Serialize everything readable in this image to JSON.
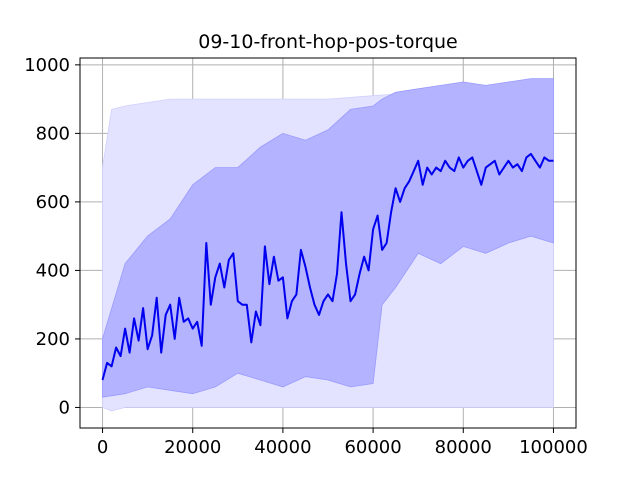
{
  "chart_data": {
    "type": "line",
    "title": "09-10-front-hop-pos-torque",
    "xlabel": "",
    "ylabel": "",
    "xlim": [
      -5000,
      105000
    ],
    "ylim": [
      -60,
      1020
    ],
    "xticks": [
      0,
      20000,
      40000,
      60000,
      80000,
      100000
    ],
    "xtick_labels": [
      "0",
      "20000",
      "40000",
      "60000",
      "80000",
      "100000"
    ],
    "yticks": [
      0,
      200,
      400,
      600,
      800,
      1000
    ],
    "ytick_labels": [
      "0",
      "200",
      "400",
      "600",
      "800",
      "1000"
    ],
    "grid": true,
    "colors": {
      "mean_line": "#0000ee",
      "inner_band": "#b3b3ff",
      "outer_band": "#e3e3ff",
      "grid": "#b0b0b0"
    },
    "series": [
      {
        "role": "mean",
        "x": [
          0,
          1000,
          2000,
          3000,
          4000,
          5000,
          6000,
          7000,
          8000,
          9000,
          10000,
          11000,
          12000,
          13000,
          14000,
          15000,
          16000,
          17000,
          18000,
          19000,
          20000,
          21000,
          22000,
          23000,
          24000,
          25000,
          26000,
          27000,
          28000,
          29000,
          30000,
          31000,
          32000,
          33000,
          34000,
          35000,
          36000,
          37000,
          38000,
          39000,
          40000,
          41000,
          42000,
          43000,
          44000,
          45000,
          46000,
          47000,
          48000,
          49000,
          50000,
          51000,
          52000,
          53000,
          54000,
          55000,
          56000,
          57000,
          58000,
          59000,
          60000,
          61000,
          62000,
          63000,
          64000,
          65000,
          66000,
          67000,
          68000,
          69000,
          70000,
          71000,
          72000,
          73000,
          74000,
          75000,
          76000,
          77000,
          78000,
          79000,
          80000,
          81000,
          82000,
          83000,
          84000,
          85000,
          86000,
          87000,
          88000,
          89000,
          90000,
          91000,
          92000,
          93000,
          94000,
          95000,
          96000,
          97000,
          98000,
          99000,
          100000
        ],
        "y": [
          80,
          130,
          120,
          175,
          150,
          230,
          160,
          260,
          195,
          290,
          170,
          210,
          320,
          160,
          270,
          300,
          200,
          320,
          250,
          260,
          230,
          250,
          180,
          480,
          300,
          380,
          420,
          350,
          430,
          450,
          310,
          300,
          300,
          190,
          280,
          240,
          470,
          360,
          440,
          370,
          380,
          260,
          310,
          330,
          460,
          410,
          350,
          300,
          270,
          310,
          330,
          310,
          390,
          570,
          420,
          310,
          330,
          390,
          440,
          400,
          520,
          560,
          460,
          480,
          570,
          640,
          600,
          640,
          660,
          690,
          720,
          650,
          700,
          680,
          700,
          690,
          720,
          700,
          690,
          730,
          700,
          720,
          730,
          690,
          650,
          700,
          710,
          720,
          680,
          700,
          720,
          700,
          710,
          690,
          730,
          740,
          720,
          700,
          730,
          720,
          720
        ]
      },
      {
        "role": "inner_band",
        "x": [
          0,
          5000,
          10000,
          15000,
          20000,
          25000,
          30000,
          35000,
          40000,
          45000,
          50000,
          55000,
          60000,
          62000,
          65000,
          70000,
          75000,
          80000,
          85000,
          90000,
          95000,
          100000
        ],
        "lower": [
          30,
          40,
          60,
          50,
          40,
          60,
          100,
          80,
          60,
          90,
          80,
          60,
          70,
          300,
          350,
          450,
          420,
          470,
          450,
          480,
          500,
          480
        ],
        "upper": [
          200,
          420,
          500,
          550,
          650,
          700,
          700,
          760,
          800,
          780,
          810,
          870,
          880,
          900,
          920,
          930,
          940,
          950,
          940,
          950,
          960,
          960
        ]
      },
      {
        "role": "outer_band",
        "x": [
          0,
          2000,
          5000,
          10000,
          15000,
          20000,
          30000,
          40000,
          50000,
          60000,
          70000,
          80000,
          90000,
          100000
        ],
        "lower": [
          0,
          -10,
          0,
          0,
          0,
          0,
          0,
          0,
          0,
          0,
          0,
          0,
          0,
          0
        ],
        "upper": [
          700,
          870,
          880,
          890,
          900,
          900,
          900,
          900,
          900,
          910,
          920,
          930,
          940,
          940
        ]
      }
    ]
  }
}
